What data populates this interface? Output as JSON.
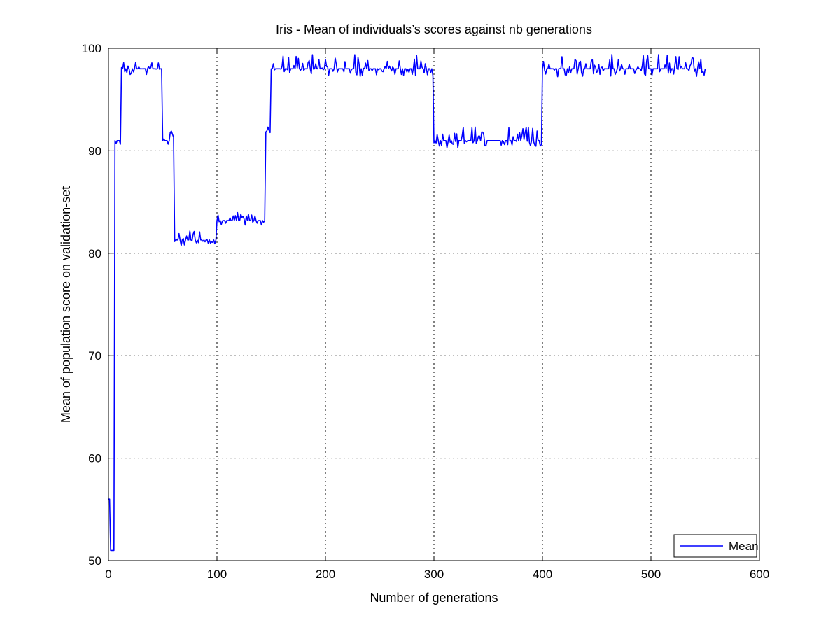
{
  "chart_data": {
    "type": "line",
    "title": "Iris - Mean of individuals’s scores against nb generations",
    "xlabel": "Number of generations",
    "ylabel": "Mean of population score on validation-set",
    "xlim": [
      0,
      600
    ],
    "ylim": [
      50,
      100
    ],
    "xticks": [
      "0",
      "100",
      "200",
      "300",
      "400",
      "500",
      "600"
    ],
    "yticks": [
      "50",
      "60",
      "70",
      "80",
      "90",
      "100"
    ],
    "grid": true,
    "legend_position": "bottom-right",
    "series": [
      {
        "name": "Mean",
        "color": "#0000ff",
        "segments": [
          {
            "x0": 0,
            "x1": 2,
            "base": 56,
            "noise": 0
          },
          {
            "x0": 2,
            "x1": 6,
            "base": 51,
            "noise": 0
          },
          {
            "x0": 6,
            "x1": 12,
            "base": 91,
            "noise": 0.8
          },
          {
            "x0": 12,
            "x1": 50,
            "base": 98,
            "noise": 1.2
          },
          {
            "x0": 50,
            "x1": 61,
            "base": 91,
            "noise": 1.0
          },
          {
            "x0": 61,
            "x1": 100,
            "base": 81.3,
            "noise": 1.0
          },
          {
            "x0": 100,
            "x1": 145,
            "base": 83.2,
            "noise": 0.9
          },
          {
            "x0": 145,
            "x1": 150,
            "base": 92,
            "noise": 0.8
          },
          {
            "x0": 150,
            "x1": 300,
            "base": 98,
            "noise": 1.4
          },
          {
            "x0": 300,
            "x1": 400,
            "base": 91,
            "noise": 1.3
          },
          {
            "x0": 400,
            "x1": 550,
            "base": 98,
            "noise": 1.4
          }
        ]
      }
    ]
  }
}
